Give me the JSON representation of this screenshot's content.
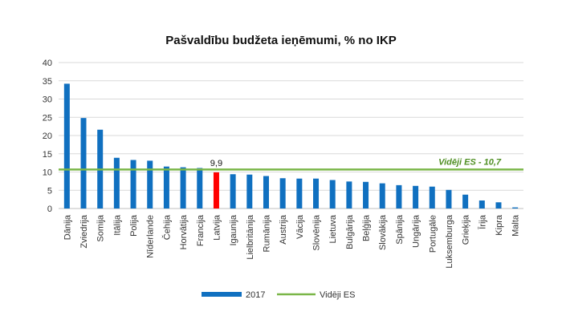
{
  "chart_data": {
    "type": "bar",
    "title": "Pašvaldību budžeta ieņēmumi, % no IKP",
    "categories": [
      "Dānija",
      "Zviedrija",
      "Somija",
      "Itālija",
      "Polija",
      "Nīderlande",
      "Čehija",
      "Horvātija",
      "Francija",
      "Latvija",
      "Igaunija",
      "Lielbritānija",
      "Rumānija",
      "Austrija",
      "Vācija",
      "Slovēnija",
      "Lietuva",
      "Bulgārija",
      "Beļģija",
      "Slovākija",
      "Spānija",
      "Ungārija",
      "Portugāle",
      "Luksemburga",
      "Grieķija",
      "Īrija",
      "Kipra",
      "Malta"
    ],
    "series": [
      {
        "name": "2017",
        "values": [
          34.2,
          24.8,
          21.6,
          13.9,
          13.3,
          13.1,
          11.5,
          11.3,
          11.1,
          9.9,
          9.4,
          9.3,
          8.9,
          8.3,
          8.2,
          8.2,
          7.8,
          7.4,
          7.3,
          6.9,
          6.4,
          6.2,
          6.0,
          5.1,
          3.8,
          2.2,
          1.7,
          0.3
        ]
      }
    ],
    "highlight": {
      "category": "Latvija",
      "label": "9,9",
      "color": "#ff0000"
    },
    "reference_line": {
      "name": "Vidēji ES",
      "value": 10.7,
      "label": "Vidēji ES - 10,7",
      "color": "#7ab648"
    },
    "ylim": [
      0,
      40
    ],
    "yticks": [
      0,
      5,
      10,
      15,
      20,
      25,
      30,
      35,
      40
    ],
    "xlabel": "",
    "ylabel": "",
    "grid": true,
    "legend": "bottom",
    "colors": {
      "bars": "#1070c0",
      "highlight": "#ff0000",
      "average": "#7ab648",
      "grid": "#d9d9d9"
    }
  }
}
